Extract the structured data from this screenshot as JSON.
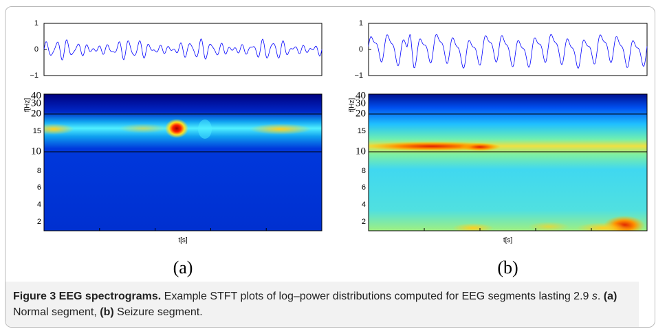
{
  "panels": [
    {
      "label": "(a)",
      "waveform": {
        "yticks": [
          "1",
          "0",
          "−1"
        ]
      },
      "spectrogram": {
        "ylabel": "f[Hz]",
        "xlabel": "t[s]",
        "yticks": [
          "40",
          "30",
          "20",
          "15",
          "10",
          "8",
          "6",
          "4",
          "2"
        ]
      }
    },
    {
      "label": "(b)",
      "waveform": {
        "yticks": [
          "1",
          "0",
          "−1"
        ]
      },
      "spectrogram": {
        "ylabel": "f[Hz]",
        "xlabel": "t[s]",
        "yticks": [
          "40",
          "30",
          "20",
          "15",
          "10",
          "8",
          "6",
          "4",
          "2"
        ]
      }
    }
  ],
  "caption": {
    "title": "Figure 3 EEG spectrograms.",
    "text": "Example STFT plots of log–power distributions computed for EEG segments lasting 2.9",
    "unit": "s",
    "period": ".",
    "a": "(a)",
    "a_text": "Normal segment,",
    "b": "(b)",
    "b_text": "Seizure segment."
  }
}
